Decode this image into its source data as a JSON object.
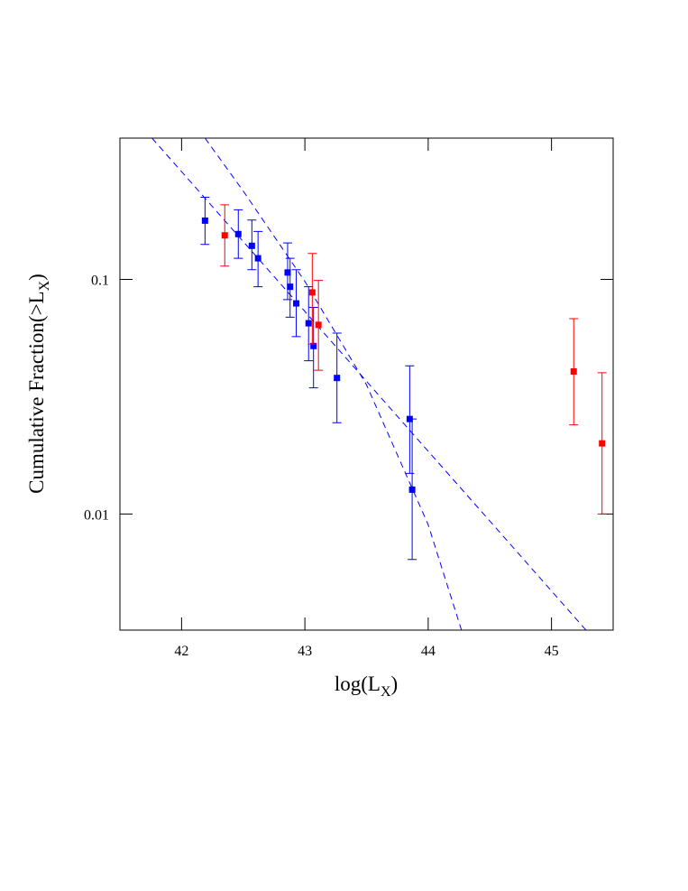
{
  "chart_data": {
    "type": "scatter",
    "xlabel": {
      "text": "log(L",
      "sub": "X",
      "end": ")"
    },
    "ylabel": {
      "text": "Cumulative Fraction(>L",
      "sub": "X",
      "end": ")"
    },
    "xlim": [
      41.5,
      45.5
    ],
    "xticks": [
      42,
      43,
      44,
      45
    ],
    "ylim": [
      0.0032,
      0.4
    ],
    "yticks": [
      0.01,
      0.1
    ],
    "log_y": true,
    "series": [
      {
        "color": "#0000ff",
        "x": [
          42.19,
          42.46,
          42.57,
          42.62,
          42.86,
          42.88,
          42.93,
          43.03,
          43.07,
          43.26,
          43.85,
          43.87
        ],
        "values": [
          0.178,
          0.156,
          0.139,
          0.123,
          0.107,
          0.093,
          0.079,
          0.065,
          0.052,
          0.038,
          0.0254,
          0.0127
        ],
        "lower": [
          0.141,
          0.123,
          0.11,
          0.093,
          0.082,
          0.069,
          0.057,
          0.045,
          0.0345,
          0.0245,
          0.0149,
          0.0064
        ],
        "upper": [
          0.224,
          0.198,
          0.179,
          0.16,
          0.143,
          0.123,
          0.11,
          0.093,
          0.076,
          0.059,
          0.0428,
          0.0254
        ]
      },
      {
        "color": "#ff0000",
        "x": [
          42.35,
          43.06,
          43.11,
          45.18,
          45.41
        ],
        "values": [
          0.154,
          0.088,
          0.064,
          0.0405,
          0.02
        ],
        "lower": [
          0.114,
          0.053,
          0.041,
          0.024,
          0.01
        ],
        "upper": [
          0.208,
          0.129,
          0.099,
          0.068,
          0.04
        ]
      }
    ],
    "lines": [
      {
        "color": "#0000ff",
        "x": [
          41.76,
          45.28
        ],
        "values": [
          0.4,
          0.0032
        ]
      },
      {
        "color": "#0000ff",
        "x": [
          42.19,
          42.5,
          43.0,
          43.5,
          44.0,
          44.27
        ],
        "values": [
          0.4,
          0.238,
          0.098,
          0.0355,
          0.009,
          0.0032
        ]
      }
    ]
  }
}
